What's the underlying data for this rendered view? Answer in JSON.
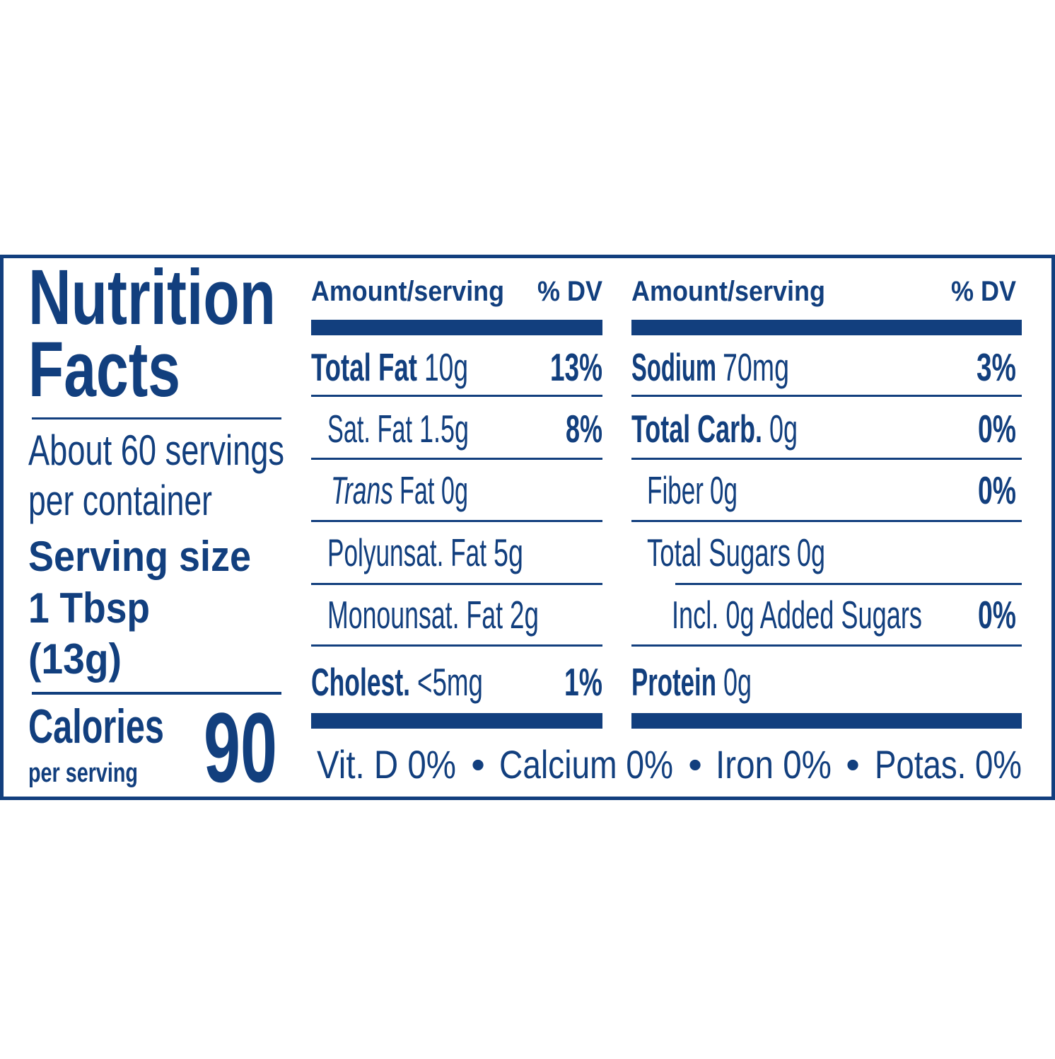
{
  "title": {
    "line1": "Nutrition",
    "line2": "Facts"
  },
  "servings": {
    "line1": "About 60 servings",
    "line2": "per container"
  },
  "serving_size": {
    "label": "Serving size",
    "line1": "1 Tbsp",
    "line2": "(13g)"
  },
  "calories": {
    "label": "Calories",
    "sub": "per serving",
    "value": 90
  },
  "columns": [
    {
      "header": {
        "amount": "Amount/serving",
        "dv": "% DV"
      },
      "rows": [
        {
          "name": "Total Fat",
          "amount": "10g",
          "dv": "13%"
        },
        {
          "name": "Sat. Fat",
          "amount": "1.5g",
          "dv": "8%"
        },
        {
          "name": "Trans",
          "amount": "Fat 0g"
        },
        {
          "name": "Polyunsat. Fat",
          "amount": "5g"
        },
        {
          "name": "Monounsat. Fat",
          "amount": "2g"
        },
        {
          "name": "Cholest.",
          "amount": "<5mg",
          "dv": "1%"
        }
      ]
    },
    {
      "header": {
        "amount": "Amount/serving",
        "dv": "% DV"
      },
      "rows": [
        {
          "name": "Sodium",
          "amount": "70mg",
          "dv": "3%"
        },
        {
          "name": "Total Carb.",
          "amount": "0g",
          "dv": "0%"
        },
        {
          "name": "Fiber",
          "amount": "0g",
          "dv": "0%"
        },
        {
          "name": "Total Sugars",
          "amount": "0g"
        },
        {
          "name": "Incl. 0g Added Sugars",
          "dv": "0%"
        },
        {
          "name": "Protein",
          "amount": "0g"
        }
      ]
    }
  ],
  "footer": {
    "items": [
      "Vit. D 0%",
      "Calcium 0%",
      "Iron 0%",
      "Potas. 0%"
    ],
    "separator": "•"
  }
}
